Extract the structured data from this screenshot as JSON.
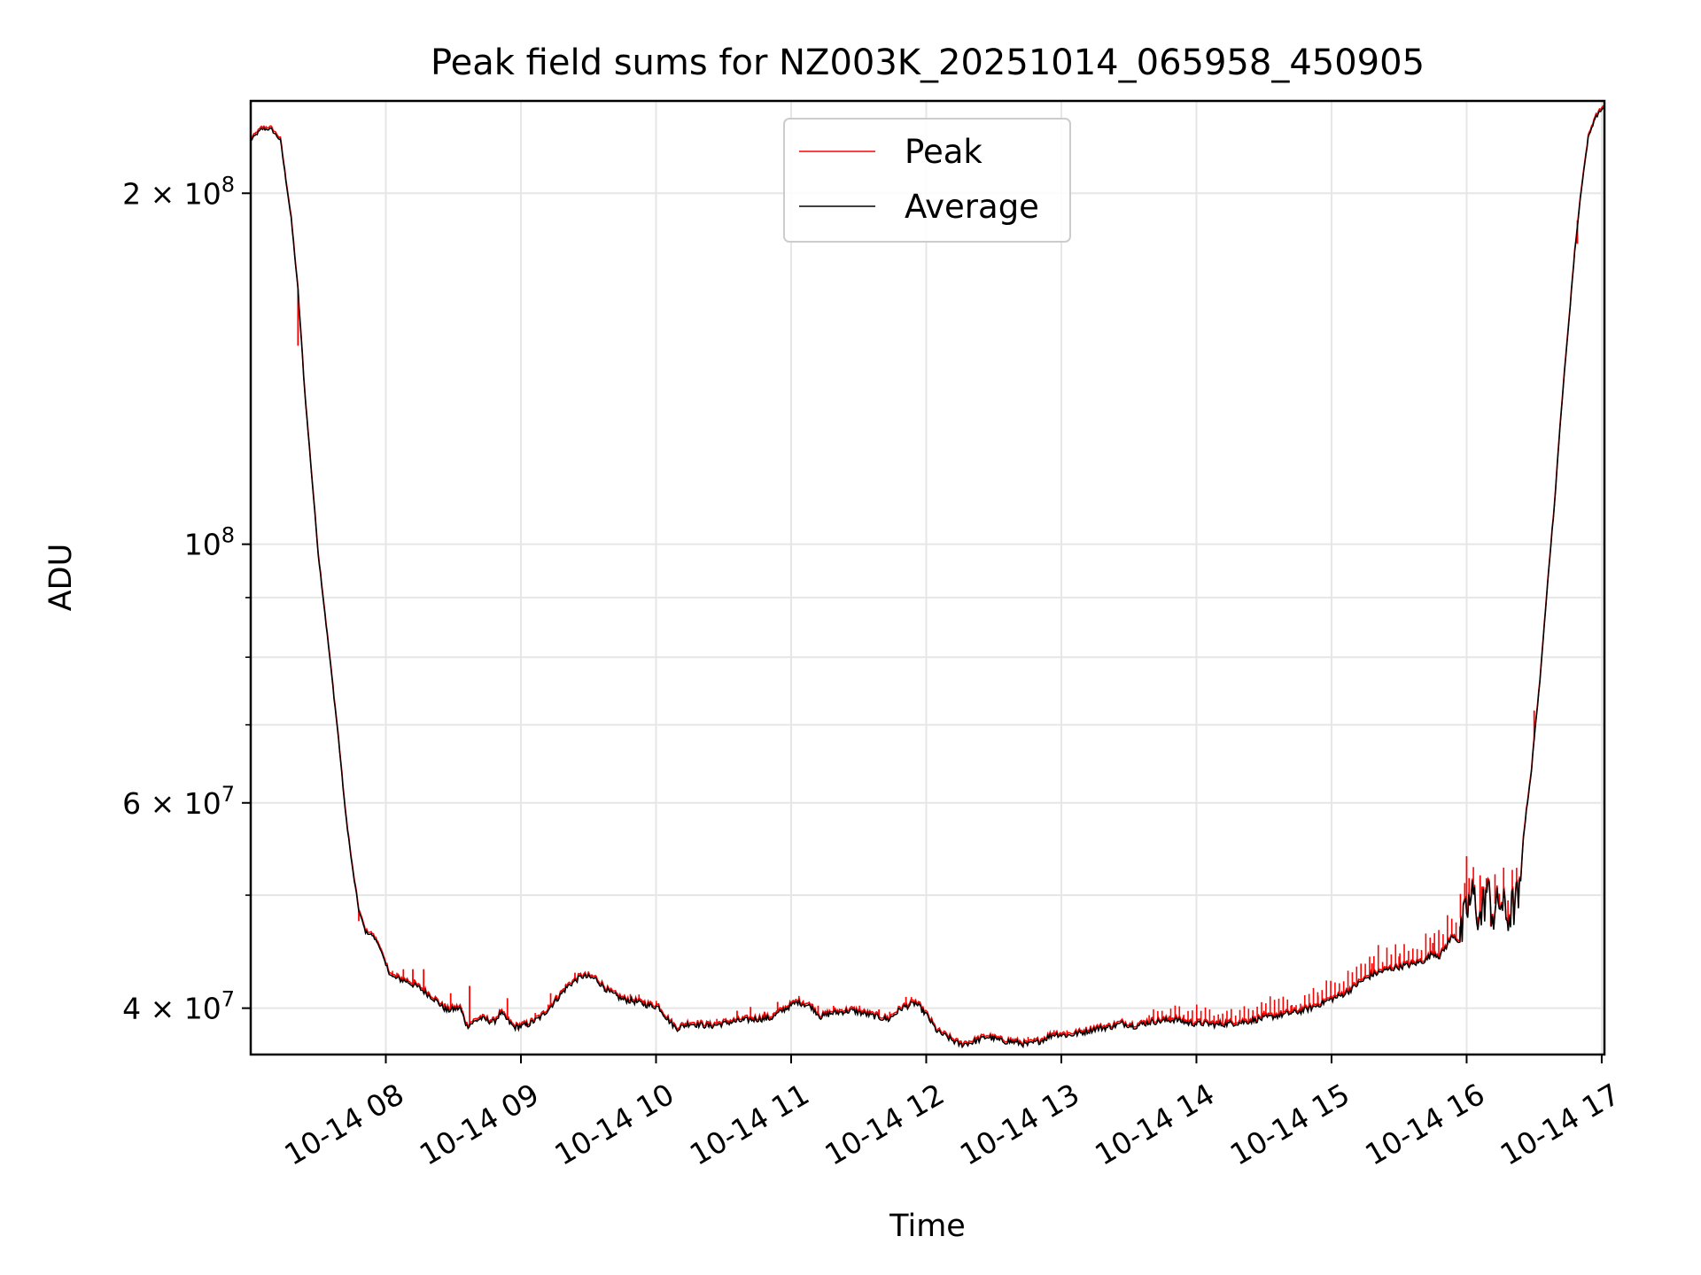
{
  "chart_data": {
    "type": "line",
    "title": "Peak field sums for NZ003K_20251014_065958_450905",
    "xlabel": "Time",
    "ylabel": "ADU",
    "y_scale": "log",
    "ylim": [
      36500000,
      240000000
    ],
    "xlim_hours": [
      7.0,
      17.02
    ],
    "x_ticks": [
      {
        "hour": 8,
        "label": "10-14 08"
      },
      {
        "hour": 9,
        "label": "10-14 09"
      },
      {
        "hour": 10,
        "label": "10-14 10"
      },
      {
        "hour": 11,
        "label": "10-14 11"
      },
      {
        "hour": 12,
        "label": "10-14 12"
      },
      {
        "hour": 13,
        "label": "10-14 13"
      },
      {
        "hour": 14,
        "label": "10-14 14"
      },
      {
        "hour": 15,
        "label": "10-14 15"
      },
      {
        "hour": 16,
        "label": "10-14 16"
      },
      {
        "hour": 17,
        "label": "10-14 17"
      }
    ],
    "y_major_ticks": [
      {
        "value": 40000000,
        "base": "4 × 10",
        "exp": "7"
      },
      {
        "value": 60000000,
        "base": "6 × 10",
        "exp": "7"
      },
      {
        "value": 100000000,
        "base": "10",
        "exp": "8"
      },
      {
        "value": 200000000,
        "base": "2 × 10",
        "exp": "8"
      }
    ],
    "y_minor_ticks": [
      50000000,
      70000000,
      80000000,
      90000000
    ],
    "legend": {
      "position": "upper center",
      "entries": [
        "Peak",
        "Average"
      ]
    },
    "series": [
      {
        "name": "Average",
        "color": "#000000",
        "points": [
          [
            7.0,
            222000000.0
          ],
          [
            7.08,
            227000000.0
          ],
          [
            7.15,
            227000000.0
          ],
          [
            7.22,
            222000000.0
          ],
          [
            7.3,
            190000000.0
          ],
          [
            7.35,
            165000000.0
          ],
          [
            7.4,
            135000000.0
          ],
          [
            7.45,
            115000000.0
          ],
          [
            7.5,
            98000000.0
          ],
          [
            7.55,
            87000000.0
          ],
          [
            7.6,
            77000000.0
          ],
          [
            7.65,
            68000000.0
          ],
          [
            7.7,
            59000000.0
          ],
          [
            7.75,
            53000000.0
          ],
          [
            7.8,
            48500000.0
          ],
          [
            7.85,
            46500000.0
          ],
          [
            7.9,
            46200000.0
          ],
          [
            7.95,
            45300000.0
          ],
          [
            8.0,
            43500000.0
          ],
          [
            8.05,
            42500000.0
          ],
          [
            8.15,
            42200000.0
          ],
          [
            8.25,
            41600000.0
          ],
          [
            8.35,
            40800000.0
          ],
          [
            8.45,
            39800000.0
          ],
          [
            8.55,
            40000000.0
          ],
          [
            8.6,
            38600000.0
          ],
          [
            8.7,
            39200000.0
          ],
          [
            8.8,
            38900000.0
          ],
          [
            8.85,
            39600000.0
          ],
          [
            8.95,
            38500000.0
          ],
          [
            9.05,
            38700000.0
          ],
          [
            9.15,
            39300000.0
          ],
          [
            9.25,
            40500000.0
          ],
          [
            9.35,
            41800000.0
          ],
          [
            9.45,
            42600000.0
          ],
          [
            9.55,
            42400000.0
          ],
          [
            9.65,
            41300000.0
          ],
          [
            9.75,
            40700000.0
          ],
          [
            9.85,
            40500000.0
          ],
          [
            9.95,
            40200000.0
          ],
          [
            10.02,
            40100000.0
          ],
          [
            10.08,
            39200000.0
          ],
          [
            10.15,
            38400000.0
          ],
          [
            10.25,
            38800000.0
          ],
          [
            10.4,
            38600000.0
          ],
          [
            10.55,
            38900000.0
          ],
          [
            10.7,
            39100000.0
          ],
          [
            10.85,
            39200000.0
          ],
          [
            10.95,
            39900000.0
          ],
          [
            11.05,
            40500000.0
          ],
          [
            11.15,
            40100000.0
          ],
          [
            11.22,
            39300000.0
          ],
          [
            11.3,
            39600000.0
          ],
          [
            11.45,
            39800000.0
          ],
          [
            11.6,
            39400000.0
          ],
          [
            11.72,
            39100000.0
          ],
          [
            11.82,
            40000000.0
          ],
          [
            11.92,
            40400000.0
          ],
          [
            12.0,
            39500000.0
          ],
          [
            12.08,
            38200000.0
          ],
          [
            12.15,
            37800000.0
          ],
          [
            12.25,
            37200000.0
          ],
          [
            12.35,
            37400000.0
          ],
          [
            12.45,
            37800000.0
          ],
          [
            12.55,
            37500000.0
          ],
          [
            12.65,
            37400000.0
          ],
          [
            12.75,
            37200000.0
          ],
          [
            12.85,
            37500000.0
          ],
          [
            12.95,
            38000000.0
          ],
          [
            13.05,
            37900000.0
          ],
          [
            13.15,
            38100000.0
          ],
          [
            13.25,
            38400000.0
          ],
          [
            13.35,
            38500000.0
          ],
          [
            13.45,
            38800000.0
          ],
          [
            13.55,
            38600000.0
          ],
          [
            13.65,
            38900000.0
          ],
          [
            13.75,
            39000000.0
          ],
          [
            13.85,
            39100000.0
          ],
          [
            13.95,
            38800000.0
          ],
          [
            14.05,
            38800000.0
          ],
          [
            14.15,
            38700000.0
          ],
          [
            14.25,
            38800000.0
          ],
          [
            14.35,
            38900000.0
          ],
          [
            14.45,
            39100000.0
          ],
          [
            14.55,
            39300000.0
          ],
          [
            14.65,
            39500000.0
          ],
          [
            14.75,
            39700000.0
          ],
          [
            14.85,
            40000000.0
          ],
          [
            14.95,
            40500000.0
          ],
          [
            15.05,
            40900000.0
          ],
          [
            15.12,
            41300000.0
          ],
          [
            15.2,
            42000000.0
          ],
          [
            15.3,
            42700000.0
          ],
          [
            15.4,
            43100000.0
          ],
          [
            15.5,
            43400000.0
          ],
          [
            15.6,
            43600000.0
          ],
          [
            15.7,
            44000000.0
          ],
          [
            15.75,
            44600000.0
          ],
          [
            15.8,
            44300000.0
          ],
          [
            15.85,
            45200000.0
          ],
          [
            15.9,
            46200000.0
          ],
          [
            15.95,
            45500000.0
          ],
          [
            16.0,
            48500000.0
          ],
          [
            16.05,
            50000000.0
          ],
          [
            16.1,
            47500000.0
          ],
          [
            16.15,
            50500000.0
          ],
          [
            16.2,
            48000000.0
          ],
          [
            16.25,
            49500000.0
          ],
          [
            16.3,
            47800000.0
          ],
          [
            16.35,
            49000000.0
          ],
          [
            16.4,
            50000000.0
          ],
          [
            16.42,
            56000000.0
          ],
          [
            16.45,
            60000000.0
          ],
          [
            16.48,
            64000000.0
          ],
          [
            16.5,
            68000000.0
          ],
          [
            16.55,
            78000000.0
          ],
          [
            16.6,
            93000000.0
          ],
          [
            16.65,
            108000000.0
          ],
          [
            16.7,
            130000000.0
          ],
          [
            16.75,
            152000000.0
          ],
          [
            16.8,
            178000000.0
          ],
          [
            16.85,
            202000000.0
          ],
          [
            16.9,
            223000000.0
          ],
          [
            16.95,
            232000000.0
          ],
          [
            17.0,
            236000000.0
          ],
          [
            17.02,
            237000000.0
          ]
        ]
      },
      {
        "name": "Peak",
        "color": "#ff0000",
        "spikes": [
          [
            7.35,
            148000000.0
          ],
          [
            7.8,
            47500000.0
          ],
          [
            8.13,
            43200000.0
          ],
          [
            8.2,
            43200000.0
          ],
          [
            8.28,
            43200000.0
          ],
          [
            8.48,
            41200000.0
          ],
          [
            8.62,
            41800000.0
          ],
          [
            8.9,
            40800000.0
          ],
          [
            9.22,
            41200000.0
          ],
          [
            9.4,
            42900000.0
          ],
          [
            9.5,
            43000000.0
          ],
          [
            10.6,
            39800000.0
          ],
          [
            10.7,
            40100000.0
          ],
          [
            10.9,
            40500000.0
          ],
          [
            11.2,
            40200000.0
          ],
          [
            11.65,
            39900000.0
          ],
          [
            11.85,
            40900000.0
          ],
          [
            13.8,
            39400000.0
          ],
          [
            14.5,
            39800000.0
          ],
          [
            14.7,
            40200000.0
          ],
          [
            14.9,
            41000000.0
          ],
          [
            15.3,
            43700000.0
          ],
          [
            15.5,
            44300000.0
          ],
          [
            15.75,
            45500000.0
          ],
          [
            15.95,
            47000000.0
          ],
          [
            16.0,
            54000000.0
          ],
          [
            16.1,
            52000000.0
          ],
          [
            16.5,
            72000000.0
          ],
          [
            16.82,
            181000000.0
          ]
        ]
      }
    ]
  }
}
